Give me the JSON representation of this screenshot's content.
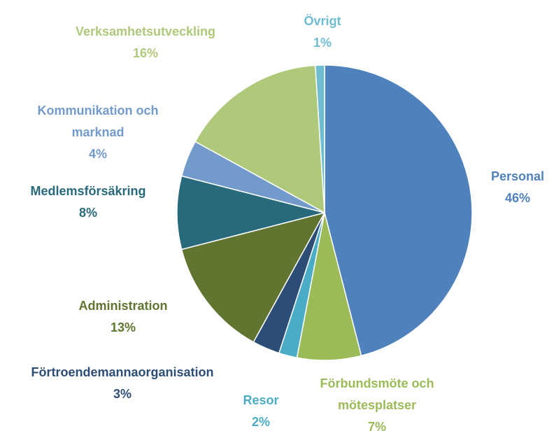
{
  "chart_data": {
    "type": "pie",
    "categories": [
      "Personal",
      "Förbundsmöte och mötesplatser",
      "Resor",
      "Förtroendemannaorganisation",
      "Administration",
      "Medlemsförsäkring",
      "Kommunikation och marknad",
      "Verksamhetsutveckling",
      "Övrigt"
    ],
    "values": [
      46,
      7,
      2,
      3,
      13,
      8,
      4,
      16,
      1
    ],
    "value_labels": [
      "46%",
      "7%",
      "2%",
      "3%",
      "13%",
      "8%",
      "4%",
      "16%",
      "1%"
    ],
    "colors": [
      "#4f81bd",
      "#9bbb59",
      "#4bacc6",
      "#2c4d75",
      "#5f7530",
      "#276a7c",
      "#729aca",
      "#afc97a",
      "#6fbdd1"
    ]
  }
}
